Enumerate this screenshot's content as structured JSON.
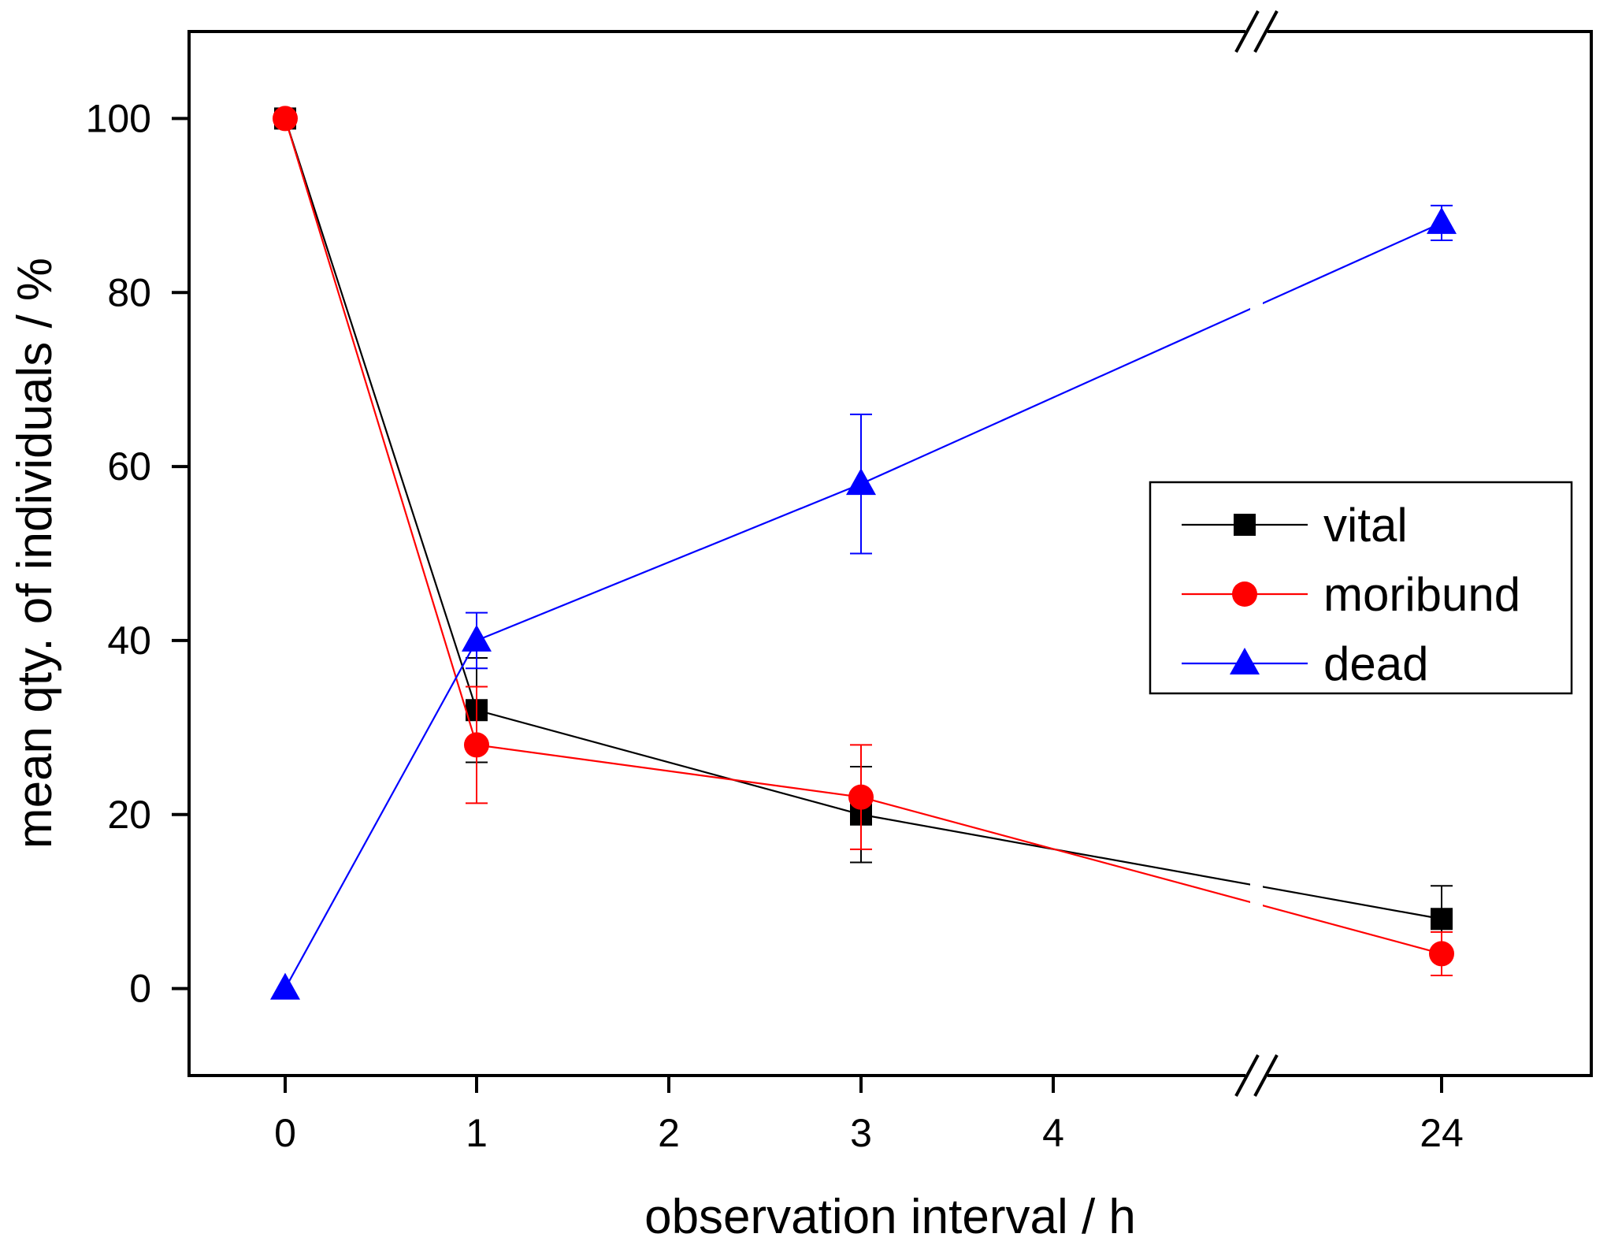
{
  "chart_data": {
    "type": "line",
    "xlabel": "observation interval / h",
    "ylabel": "mean qty. of individuals / %",
    "categories": [
      "0",
      "1",
      "2",
      "3",
      "4",
      "24"
    ],
    "x_break": "between 4 and 24",
    "ylim": [
      -10,
      110
    ],
    "yticks": [
      0,
      20,
      40,
      60,
      80,
      100
    ],
    "legend_position": "center-right",
    "series": [
      {
        "name": "vital",
        "color": "#000000",
        "marker": "square",
        "x": [
          "0",
          "1",
          "3",
          "24"
        ],
        "values": [
          100,
          32,
          20,
          8
        ],
        "errors": [
          0,
          6,
          5.5,
          3.8
        ]
      },
      {
        "name": "moribund",
        "color": "#ff0000",
        "marker": "circle",
        "x": [
          "0",
          "1",
          "3",
          "24"
        ],
        "values": [
          100,
          28,
          22,
          4
        ],
        "errors": [
          0,
          6.7,
          6,
          2.5
        ]
      },
      {
        "name": "dead",
        "color": "#0000ff",
        "marker": "triangle",
        "x": [
          "0",
          "1",
          "3",
          "24"
        ],
        "values": [
          0,
          40,
          58,
          88
        ],
        "errors": [
          0,
          3.2,
          8,
          2
        ]
      }
    ]
  }
}
